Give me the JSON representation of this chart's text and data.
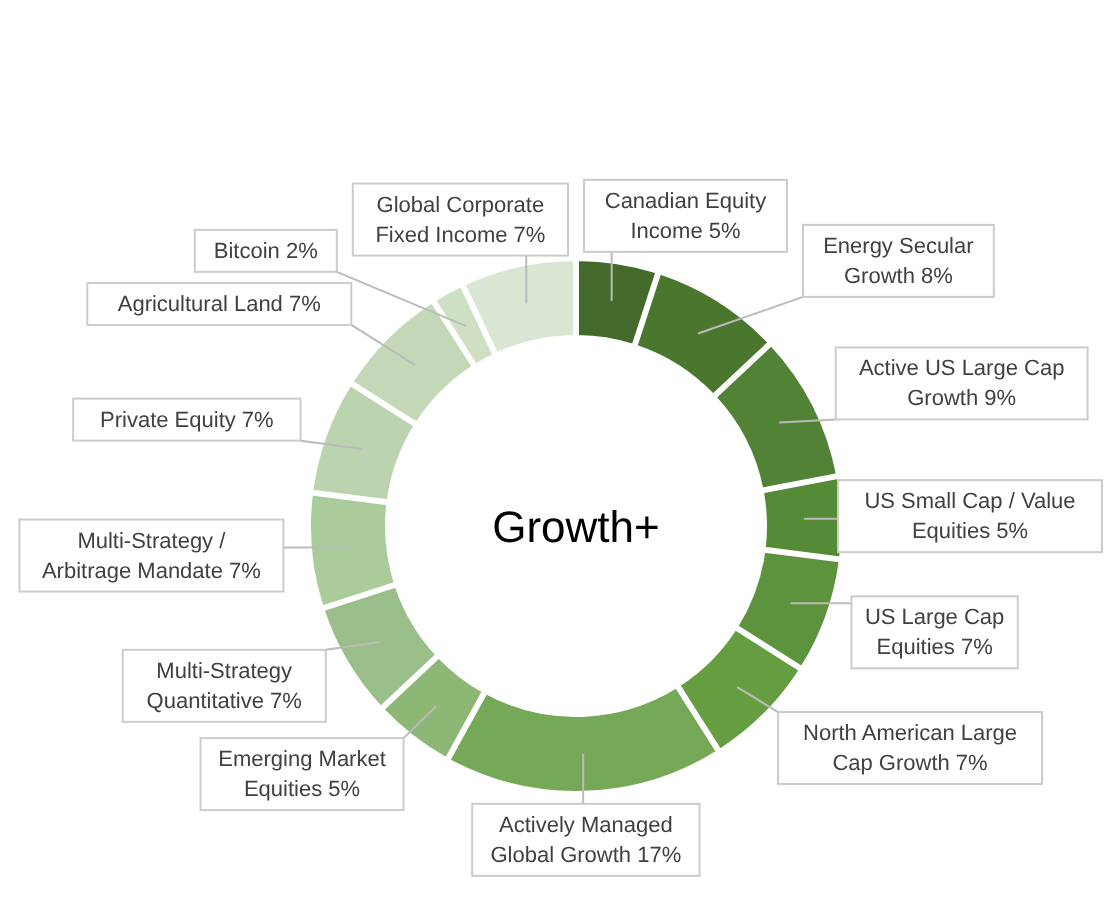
{
  "chart_data": {
    "type": "donut",
    "title": "Growth+",
    "categories": [
      "Canadian Equity Income",
      "Energy Secular Growth",
      "Active US Large Cap Growth",
      "US Small Cap / Value Equities",
      "US Large Cap Equities",
      "North American Large Cap Growth",
      "Actively Managed Global Growth",
      "Emerging Market Equities",
      "Multi-Strategy Quantitative",
      "Multi-Strategy / Arbitrage Mandate",
      "Private Equity",
      "Agricultural Land",
      "Bitcoin",
      "Global Corporate Fixed Income"
    ],
    "values": [
      5,
      8,
      9,
      5,
      7,
      7,
      17,
      5,
      7,
      7,
      7,
      7,
      2,
      7
    ],
    "value_labels": [
      "5%",
      "8%",
      "9%",
      "5%",
      "7%",
      "7%",
      "17%",
      "5%",
      "7%",
      "7%",
      "7%",
      "7%",
      "2%",
      "7%"
    ],
    "colors": [
      "#436a2a",
      "#4a772d",
      "#528235",
      "#558a36",
      "#5d933c",
      "#659d40",
      "#76a957",
      "#8cb775",
      "#9bbf8a",
      "#aacb9a",
      "#bbd3ae",
      "#c4d8b8",
      "#cfe0c4",
      "#dae6d4"
    ]
  }
}
